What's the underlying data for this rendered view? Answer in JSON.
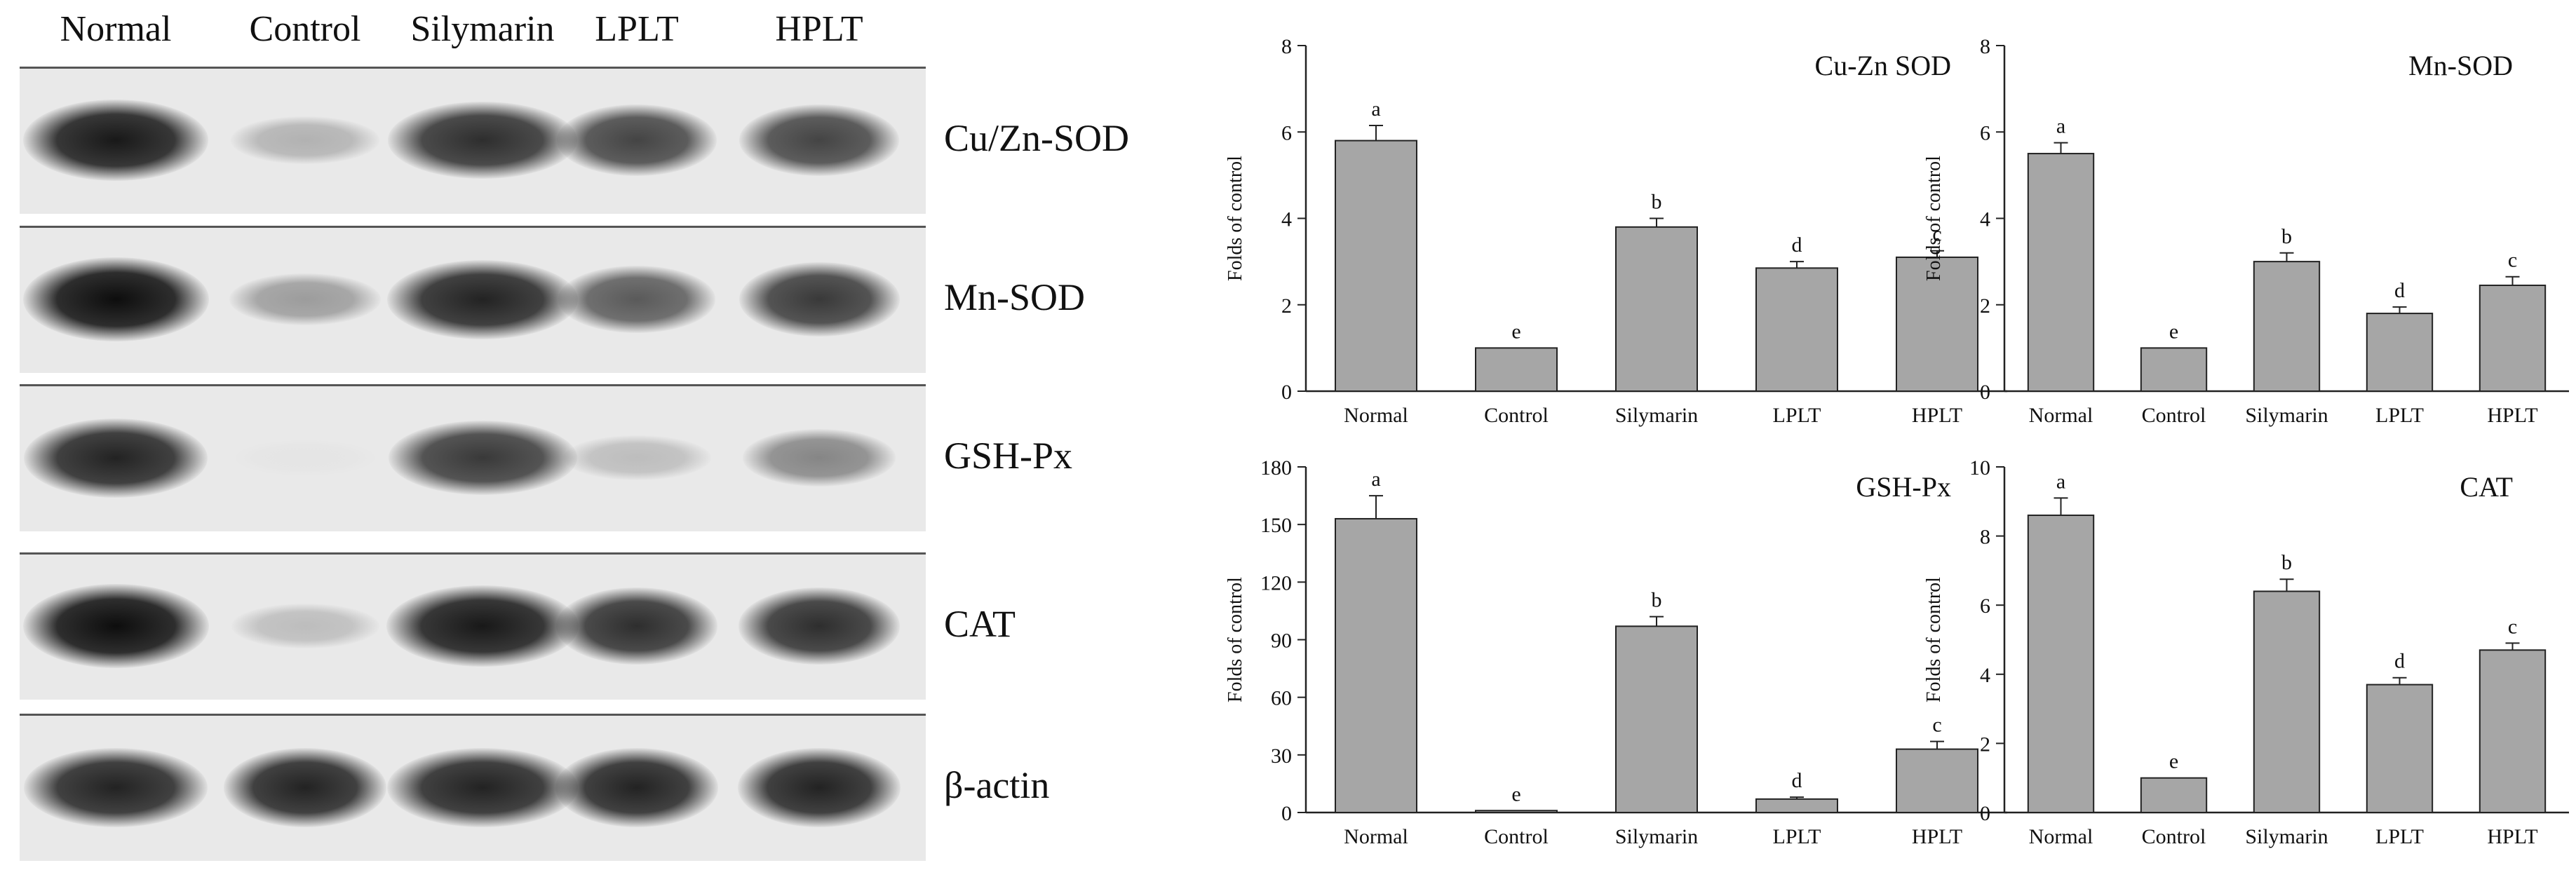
{
  "blot": {
    "lanes": [
      "Normal",
      "Control",
      "Silymarin",
      "LPLT",
      "HPLT"
    ],
    "proteins": [
      {
        "label": "Cu/Zn-SOD",
        "intensity": [
          0.95,
          0.25,
          0.85,
          0.75,
          0.75
        ]
      },
      {
        "label": "Mn-SOD",
        "intensity": [
          1.0,
          0.35,
          0.9,
          0.65,
          0.8
        ]
      },
      {
        "label": "GSH-Px",
        "intensity": [
          0.9,
          0.02,
          0.8,
          0.2,
          0.45
        ]
      },
      {
        "label": "CAT",
        "intensity": [
          1.0,
          0.2,
          0.95,
          0.85,
          0.85
        ]
      },
      {
        "label": "β-actin",
        "intensity": [
          0.9,
          0.9,
          0.9,
          0.9,
          0.9
        ]
      }
    ]
  },
  "chart_data": [
    {
      "type": "bar",
      "title": "Cu-Zn SOD",
      "ylabel": "Folds of control",
      "xlabel": "",
      "categories": [
        "Normal",
        "Control",
        "Silymarin",
        "LPLT",
        "HPLT"
      ],
      "values": [
        5.8,
        1.0,
        3.8,
        2.85,
        3.1
      ],
      "errors": [
        0.35,
        0.0,
        0.2,
        0.15,
        0.15
      ],
      "letters": [
        "a",
        "e",
        "b",
        "d",
        "c"
      ],
      "ylim": [
        0,
        8
      ],
      "yticks": [
        "0",
        "2",
        "4",
        "6",
        "8"
      ]
    },
    {
      "type": "bar",
      "title": "Mn-SOD",
      "ylabel": "Folds of control",
      "xlabel": "",
      "categories": [
        "Normal",
        "Control",
        "Silymarin",
        "LPLT",
        "HPLT"
      ],
      "values": [
        5.5,
        1.0,
        3.0,
        1.8,
        2.45
      ],
      "errors": [
        0.25,
        0.0,
        0.2,
        0.15,
        0.2
      ],
      "letters": [
        "a",
        "e",
        "b",
        "d",
        "c"
      ],
      "ylim": [
        0,
        8
      ],
      "yticks": [
        "0",
        "2",
        "4",
        "6",
        "8"
      ]
    },
    {
      "type": "bar",
      "title": "GSH-Px",
      "ylabel": "Folds of control",
      "xlabel": "",
      "categories": [
        "Normal",
        "Control",
        "Silymarin",
        "LPLT",
        "HPLT"
      ],
      "values": [
        153,
        1,
        97,
        7,
        33
      ],
      "errors": [
        12,
        0,
        5,
        1,
        4
      ],
      "letters": [
        "a",
        "e",
        "b",
        "d",
        "c"
      ],
      "ylim": [
        0,
        180
      ],
      "yticks": [
        "0",
        "30",
        "60",
        "90",
        "120",
        "150",
        "180"
      ]
    },
    {
      "type": "bar",
      "title": "CAT",
      "ylabel": "Folds of control",
      "xlabel": "",
      "categories": [
        "Normal",
        "Control",
        "Silymarin",
        "LPLT",
        "HPLT"
      ],
      "values": [
        8.6,
        1.0,
        6.4,
        3.7,
        4.7
      ],
      "errors": [
        0.5,
        0.0,
        0.35,
        0.2,
        0.2
      ],
      "letters": [
        "a",
        "e",
        "b",
        "d",
        "c"
      ],
      "ylim": [
        0,
        10
      ],
      "yticks": [
        "0",
        "2",
        "4",
        "6",
        "8",
        "10"
      ]
    }
  ],
  "colors": {
    "bar_fill": "#a6a6a6",
    "bar_stroke": "#222222",
    "axis": "#222222",
    "band_dark": "#0d0d0d",
    "blot_bg": "#e9e9e9"
  }
}
